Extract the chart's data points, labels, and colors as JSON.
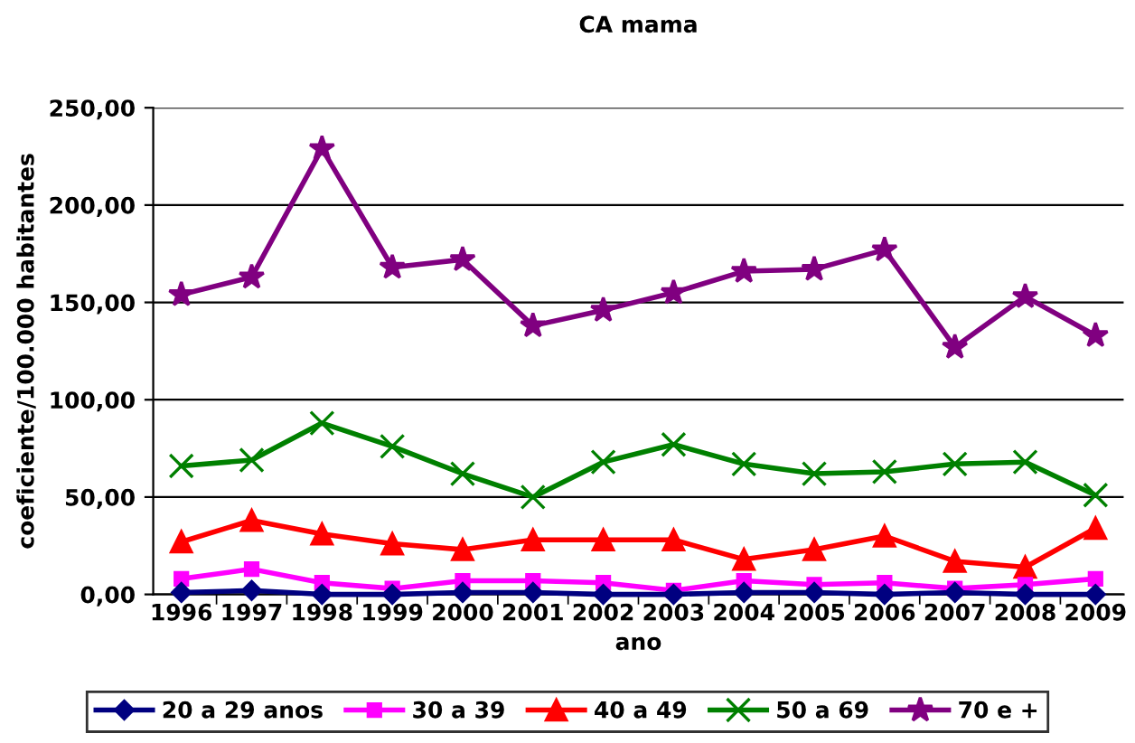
{
  "chart_data": {
    "type": "line",
    "title": "CA mama",
    "xlabel": "ano",
    "ylabel": "coeficiente/100.000 habitantes",
    "categories": [
      "1996",
      "1997",
      "1998",
      "1999",
      "2000",
      "2001",
      "2002",
      "2003",
      "2004",
      "2005",
      "2006",
      "2007",
      "2008",
      "2009"
    ],
    "series": [
      {
        "name": "20 a 29 anos",
        "color": "#000080",
        "marker": "diamond",
        "values": [
          1,
          2,
          0,
          0,
          1,
          1,
          0,
          0,
          1,
          1,
          0,
          1,
          0,
          0
        ]
      },
      {
        "name": "30 a 39",
        "color": "#ff00ff",
        "marker": "square",
        "values": [
          8,
          13,
          6,
          3,
          7,
          7,
          6,
          2,
          7,
          5,
          6,
          3,
          5,
          8
        ]
      },
      {
        "name": "40 a 49",
        "color": "#ff0000",
        "marker": "triangle",
        "values": [
          27,
          38,
          31,
          26,
          23,
          28,
          28,
          28,
          18,
          23,
          30,
          17,
          14,
          34
        ]
      },
      {
        "name": "50 a 69",
        "color": "#008000",
        "marker": "cross",
        "values": [
          66,
          69,
          88,
          76,
          62,
          50,
          68,
          77,
          67,
          62,
          63,
          67,
          68,
          51
        ]
      },
      {
        "name": "70 e +",
        "color": "#800080",
        "marker": "star",
        "values": [
          154,
          163,
          229,
          168,
          172,
          138,
          146,
          155,
          166,
          167,
          177,
          127,
          153,
          133
        ]
      }
    ],
    "ylim": [
      0,
      250
    ],
    "yticks": [
      {
        "value": 0,
        "label": "0,00"
      },
      {
        "value": 50,
        "label": "50,00"
      },
      {
        "value": 100,
        "label": "100,00"
      },
      {
        "value": 150,
        "label": "150,00"
      },
      {
        "value": 200,
        "label": "200,00"
      },
      {
        "value": 250,
        "label": "250,00"
      }
    ],
    "grid": "y",
    "legend": "bottom"
  }
}
